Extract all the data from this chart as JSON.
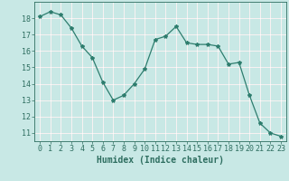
{
  "x": [
    0,
    1,
    2,
    3,
    4,
    5,
    6,
    7,
    8,
    9,
    10,
    11,
    12,
    13,
    14,
    15,
    16,
    17,
    18,
    19,
    20,
    21,
    22,
    23
  ],
  "y": [
    18.1,
    18.4,
    18.2,
    17.4,
    16.3,
    15.6,
    14.1,
    13.0,
    13.3,
    14.0,
    14.9,
    16.7,
    16.9,
    17.5,
    16.5,
    16.4,
    16.4,
    16.3,
    15.2,
    15.3,
    13.3,
    11.6,
    11.0,
    10.8
  ],
  "line_color": "#2e7d6e",
  "marker": "*",
  "marker_size": 3,
  "bg_color": "#c8e8e5",
  "grid_white_color": "#ffffff",
  "grid_red_color": "#d4a0a0",
  "xlabel": "Humidex (Indice chaleur)",
  "xlim": [
    -0.5,
    23.5
  ],
  "ylim": [
    10.5,
    19.0
  ],
  "yticks": [
    11,
    12,
    13,
    14,
    15,
    16,
    17,
    18
  ],
  "xticks": [
    0,
    1,
    2,
    3,
    4,
    5,
    6,
    7,
    8,
    9,
    10,
    11,
    12,
    13,
    14,
    15,
    16,
    17,
    18,
    19,
    20,
    21,
    22,
    23
  ],
  "tick_color": "#2e6e60",
  "label_fontsize": 7,
  "tick_fontsize": 6
}
